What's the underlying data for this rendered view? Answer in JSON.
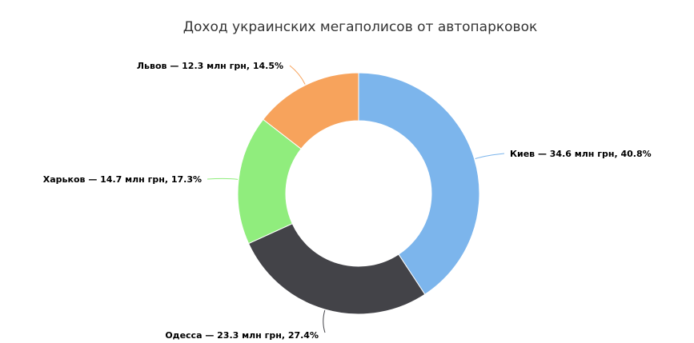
{
  "chart_data": {
    "type": "pie",
    "variant": "donut",
    "title": "Доход украинских мегаполисов от автопарковок",
    "unit": "млн грн",
    "slices": [
      {
        "name": "Киев",
        "value": 34.6,
        "percent": 40.8,
        "color": "#7cb5ec",
        "label": "Киев — 34.6 млн грн, 40.8%"
      },
      {
        "name": "Одесса",
        "value": 23.3,
        "percent": 27.4,
        "color": "#434348",
        "label": "Одесса — 23.3 млн грн, 27.4%"
      },
      {
        "name": "Харьков",
        "value": 14.7,
        "percent": 17.3,
        "color": "#90ed7d",
        "label": "Харьков — 14.7 млн грн, 17.3%"
      },
      {
        "name": "Львов",
        "value": 12.3,
        "percent": 14.5,
        "color": "#f7a35c",
        "label": "Львов — 12.3 млн грн, 14.5%"
      }
    ]
  }
}
